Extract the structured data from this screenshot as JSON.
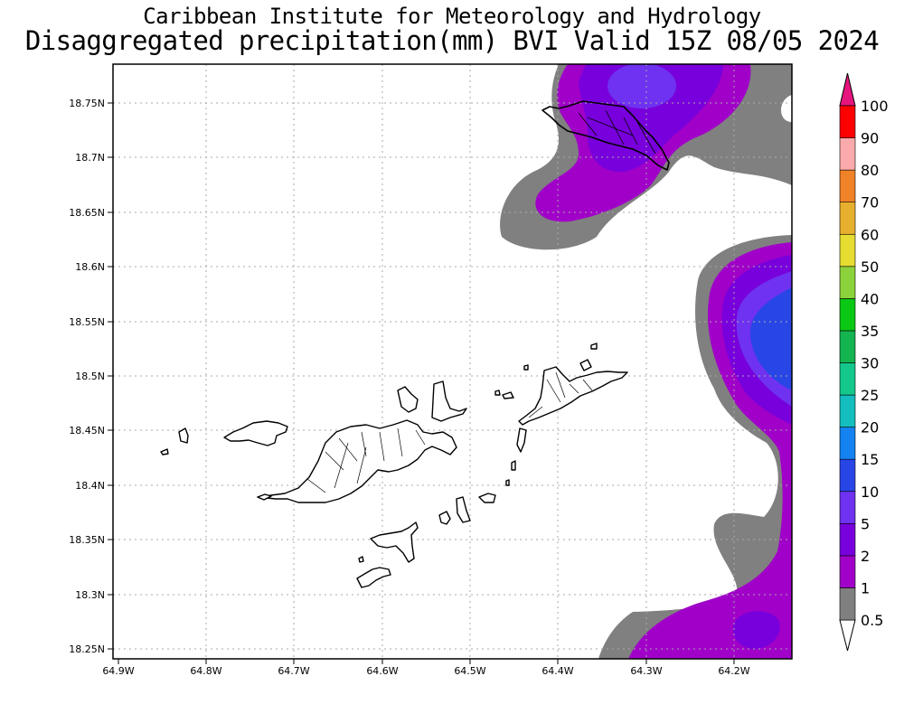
{
  "title": {
    "line1": "Caribbean Institute for Meteorology and Hydrology",
    "line2": "Disaggregated precipitation(mm) BVI Valid 15Z 08/05 2024"
  },
  "axes": {
    "lat_labels": [
      "18.25N",
      "18.3N",
      "18.35N",
      "18.4N",
      "18.45N",
      "18.5N",
      "18.55N",
      "18.6N",
      "18.65N",
      "18.7N",
      "18.75N"
    ],
    "lat_values": [
      18.25,
      18.3,
      18.35,
      18.4,
      18.45,
      18.5,
      18.55,
      18.6,
      18.65,
      18.7,
      18.75
    ],
    "lon_labels": [
      "64.9W",
      "64.8W",
      "64.7W",
      "64.6W",
      "64.5W",
      "64.4W",
      "64.3W",
      "64.2W"
    ],
    "lon_values": [
      -64.9,
      -64.8,
      -64.7,
      -64.6,
      -64.5,
      -64.4,
      -64.3,
      -64.2
    ]
  },
  "colorbar": {
    "levels": [
      "0.5",
      "1",
      "2",
      "5",
      "10",
      "15",
      "20",
      "25",
      "30",
      "35",
      "40",
      "50",
      "60",
      "70",
      "80",
      "90",
      "100"
    ],
    "colors": [
      "#808080",
      "#a000c8",
      "#7800dc",
      "#6e32f0",
      "#2846e6",
      "#1482f0",
      "#14bebe",
      "#14c88c",
      "#14b450",
      "#0ac814",
      "#8cd23c",
      "#e6dc32",
      "#e6af2d",
      "#f08228",
      "#faaaaa",
      "#ff0000",
      "#e61e46",
      "#e6147d"
    ],
    "lowest_color": "#ffffff"
  }
}
